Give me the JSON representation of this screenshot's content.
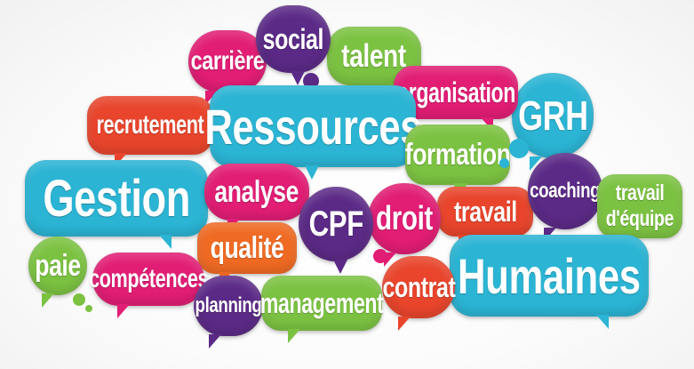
{
  "colors": {
    "pink": "#e11d74",
    "purple": "#5b2a86",
    "green": "#7cc242",
    "cyan": "#2bb4d4",
    "red": "#e8452c",
    "orange": "#ef6a23"
  },
  "words": {
    "carriere": "carrière",
    "social": "social",
    "talent": "talent",
    "organisation": "organisation",
    "grh": "GRH",
    "recrutement": "recrutement",
    "ressources": "Ressources",
    "formation": "formation",
    "gestion": "Gestion",
    "analyse": "analyse",
    "cpf": "CPF",
    "droit": "droit",
    "travail": "travail",
    "coaching": "coaching",
    "travail_equipe_1": "travail",
    "travail_equipe_2": "d'équipe",
    "paie": "paie",
    "competences": "compétences",
    "qualite": "qualité",
    "contrat": "contrat",
    "humaines": "Humaines",
    "planning": "planning",
    "management": "management"
  }
}
